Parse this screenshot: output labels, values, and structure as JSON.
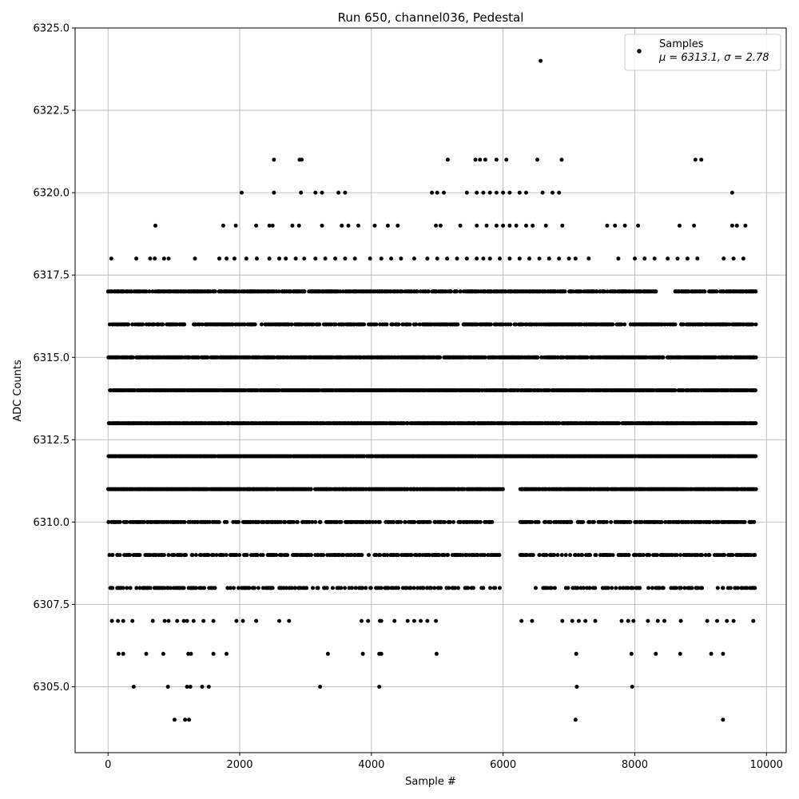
{
  "chart_data": {
    "type": "scatter",
    "title": "Run 650, channel036, Pedestal",
    "xlabel": "Sample #",
    "ylabel": "ADC Counts",
    "xlim": [
      -500,
      10300
    ],
    "ylim": [
      6303,
      6325
    ],
    "xticks": [
      0,
      2000,
      4000,
      6000,
      8000,
      10000
    ],
    "yticks": [
      6305.0,
      6307.5,
      6310.0,
      6312.5,
      6315.0,
      6317.5,
      6320.0,
      6322.5,
      6325.0
    ],
    "grid": true,
    "marker_color": "#000000",
    "legend": {
      "placement": "top-right",
      "series_label": "Samples",
      "stats_label": "μ = 6313.1, σ = 2.78"
    },
    "series": [
      {
        "name": "Samples",
        "mean": 6313.1,
        "sigma": 2.78,
        "points": [
          [
            50,
            6318
          ],
          [
            430,
            6318
          ],
          [
            640,
            6318
          ],
          [
            710,
            6318
          ],
          [
            850,
            6318
          ],
          [
            920,
            6318
          ],
          [
            1320,
            6318
          ],
          [
            1690,
            6318
          ],
          [
            1800,
            6318
          ],
          [
            1920,
            6318
          ],
          [
            2100,
            6318
          ],
          [
            2260,
            6318
          ],
          [
            2450,
            6318
          ],
          [
            2600,
            6318
          ],
          [
            2700,
            6318
          ],
          [
            2850,
            6318
          ],
          [
            2980,
            6318
          ],
          [
            3150,
            6318
          ],
          [
            3300,
            6318
          ],
          [
            3450,
            6318
          ],
          [
            3600,
            6318
          ],
          [
            3750,
            6318
          ],
          [
            3980,
            6318
          ],
          [
            4150,
            6318
          ],
          [
            4300,
            6318
          ],
          [
            4450,
            6318
          ],
          [
            4650,
            6318
          ],
          [
            4850,
            6318
          ],
          [
            5000,
            6318
          ],
          [
            5150,
            6318
          ],
          [
            5300,
            6318
          ],
          [
            5450,
            6318
          ],
          [
            5600,
            6318
          ],
          [
            5700,
            6318
          ],
          [
            5800,
            6318
          ],
          [
            5950,
            6318
          ],
          [
            6100,
            6318
          ],
          [
            6250,
            6318
          ],
          [
            6400,
            6318
          ],
          [
            6550,
            6318
          ],
          [
            6700,
            6318
          ],
          [
            6850,
            6318
          ],
          [
            7000,
            6318
          ],
          [
            7100,
            6318
          ],
          [
            7300,
            6318
          ],
          [
            7750,
            6318
          ],
          [
            8000,
            6318
          ],
          [
            8150,
            6318
          ],
          [
            8300,
            6318
          ],
          [
            8500,
            6318
          ],
          [
            8650,
            6318
          ],
          [
            8800,
            6318
          ],
          [
            8950,
            6318
          ],
          [
            9350,
            6318
          ],
          [
            9500,
            6318
          ],
          [
            9650,
            6318
          ],
          [
            720,
            6319
          ],
          [
            1750,
            6319
          ],
          [
            1940,
            6319
          ],
          [
            2250,
            6319
          ],
          [
            2450,
            6319
          ],
          [
            2500,
            6319
          ],
          [
            2800,
            6319
          ],
          [
            2900,
            6319
          ],
          [
            3250,
            6319
          ],
          [
            3550,
            6319
          ],
          [
            3650,
            6319
          ],
          [
            3800,
            6319
          ],
          [
            4050,
            6319
          ],
          [
            4250,
            6319
          ],
          [
            4400,
            6319
          ],
          [
            4980,
            6319
          ],
          [
            5050,
            6319
          ],
          [
            5350,
            6319
          ],
          [
            5600,
            6319
          ],
          [
            5750,
            6319
          ],
          [
            5900,
            6319
          ],
          [
            6000,
            6319
          ],
          [
            6100,
            6319
          ],
          [
            6200,
            6319
          ],
          [
            6350,
            6319
          ],
          [
            6450,
            6319
          ],
          [
            6650,
            6319
          ],
          [
            6900,
            6319
          ],
          [
            7580,
            6319
          ],
          [
            7700,
            6319
          ],
          [
            7850,
            6319
          ],
          [
            8050,
            6319
          ],
          [
            8680,
            6319
          ],
          [
            8900,
            6319
          ],
          [
            9480,
            6319
          ],
          [
            9550,
            6319
          ],
          [
            9680,
            6319
          ],
          [
            2030,
            6320
          ],
          [
            2520,
            6320
          ],
          [
            2930,
            6320
          ],
          [
            3150,
            6320
          ],
          [
            3250,
            6320
          ],
          [
            3500,
            6320
          ],
          [
            3600,
            6320
          ],
          [
            4920,
            6320
          ],
          [
            5000,
            6320
          ],
          [
            5100,
            6320
          ],
          [
            5450,
            6320
          ],
          [
            5600,
            6320
          ],
          [
            5700,
            6320
          ],
          [
            5800,
            6320
          ],
          [
            5900,
            6320
          ],
          [
            6000,
            6320
          ],
          [
            6100,
            6320
          ],
          [
            6250,
            6320
          ],
          [
            6350,
            6320
          ],
          [
            6600,
            6320
          ],
          [
            6750,
            6320
          ],
          [
            6850,
            6320
          ],
          [
            9480,
            6320
          ],
          [
            2520,
            6321
          ],
          [
            2910,
            6321
          ],
          [
            2940,
            6321
          ],
          [
            5160,
            6321
          ],
          [
            5580,
            6321
          ],
          [
            5650,
            6321
          ],
          [
            5730,
            6321
          ],
          [
            5900,
            6321
          ],
          [
            6050,
            6321
          ],
          [
            6520,
            6321
          ],
          [
            6890,
            6321
          ],
          [
            8920,
            6321
          ],
          [
            9010,
            6321
          ],
          [
            6570,
            6324
          ],
          [
            60,
            6307
          ],
          [
            150,
            6307
          ],
          [
            230,
            6307
          ],
          [
            370,
            6307
          ],
          [
            680,
            6307
          ],
          [
            860,
            6307
          ],
          [
            920,
            6307
          ],
          [
            1050,
            6307
          ],
          [
            1150,
            6307
          ],
          [
            1200,
            6307
          ],
          [
            1300,
            6307
          ],
          [
            1450,
            6307
          ],
          [
            1600,
            6307
          ],
          [
            1950,
            6307
          ],
          [
            2050,
            6307
          ],
          [
            2250,
            6307
          ],
          [
            2600,
            6307
          ],
          [
            2750,
            6307
          ],
          [
            3850,
            6307
          ],
          [
            3950,
            6307
          ],
          [
            4130,
            6307
          ],
          [
            4150,
            6307
          ],
          [
            4350,
            6307
          ],
          [
            4550,
            6307
          ],
          [
            4650,
            6307
          ],
          [
            4750,
            6307
          ],
          [
            4850,
            6307
          ],
          [
            4980,
            6307
          ],
          [
            6280,
            6307
          ],
          [
            6440,
            6307
          ],
          [
            6900,
            6307
          ],
          [
            7050,
            6307
          ],
          [
            7150,
            6307
          ],
          [
            7250,
            6307
          ],
          [
            7400,
            6307
          ],
          [
            7800,
            6307
          ],
          [
            7900,
            6307
          ],
          [
            7980,
            6307
          ],
          [
            8200,
            6307
          ],
          [
            8350,
            6307
          ],
          [
            8450,
            6307
          ],
          [
            8700,
            6307
          ],
          [
            9100,
            6307
          ],
          [
            9250,
            6307
          ],
          [
            9400,
            6307
          ],
          [
            9500,
            6307
          ],
          [
            9800,
            6307
          ],
          [
            160,
            6306
          ],
          [
            230,
            6306
          ],
          [
            580,
            6306
          ],
          [
            840,
            6306
          ],
          [
            1220,
            6306
          ],
          [
            1260,
            6306
          ],
          [
            1600,
            6306
          ],
          [
            1800,
            6306
          ],
          [
            3340,
            6306
          ],
          [
            3870,
            6306
          ],
          [
            4120,
            6306
          ],
          [
            4150,
            6306
          ],
          [
            4990,
            6306
          ],
          [
            7110,
            6306
          ],
          [
            7950,
            6306
          ],
          [
            8320,
            6306
          ],
          [
            8690,
            6306
          ],
          [
            9160,
            6306
          ],
          [
            9340,
            6306
          ],
          [
            390,
            6305
          ],
          [
            910,
            6305
          ],
          [
            1200,
            6305
          ],
          [
            1250,
            6305
          ],
          [
            1430,
            6305
          ],
          [
            1530,
            6305
          ],
          [
            3220,
            6305
          ],
          [
            4120,
            6305
          ],
          [
            7120,
            6305
          ],
          [
            7960,
            6305
          ],
          [
            1010,
            6304
          ],
          [
            1170,
            6304
          ],
          [
            1230,
            6304
          ],
          [
            7100,
            6304
          ],
          [
            9340,
            6304
          ]
        ],
        "dense_levels": [
          {
            "value": 6317,
            "density": 0.72,
            "gaps": [
              [
                8330,
                8600
              ]
            ]
          },
          {
            "value": 6316,
            "density": 0.62,
            "gaps": [
              [
                1160,
                1300
              ]
            ]
          },
          {
            "value": 6315,
            "density": 0.85,
            "gaps": []
          },
          {
            "value": 6314,
            "density": 0.85,
            "gaps": []
          },
          {
            "value": 6313,
            "density": 0.92,
            "gaps": []
          },
          {
            "value": 6312,
            "density": 0.97,
            "gaps": []
          },
          {
            "value": 6311,
            "density": 0.94,
            "gaps": [
              [
                6000,
                6250
              ]
            ]
          },
          {
            "value": 6310,
            "density": 0.58,
            "gaps": [
              [
                5900,
                6250
              ]
            ]
          },
          {
            "value": 6309,
            "density": 0.5,
            "gaps": [
              [
                5950,
                6250
              ]
            ]
          },
          {
            "value": 6308,
            "density": 0.35,
            "gaps": [
              [
                5950,
                6400
              ]
            ]
          }
        ],
        "x_range": [
          0,
          9830
        ]
      }
    ]
  }
}
